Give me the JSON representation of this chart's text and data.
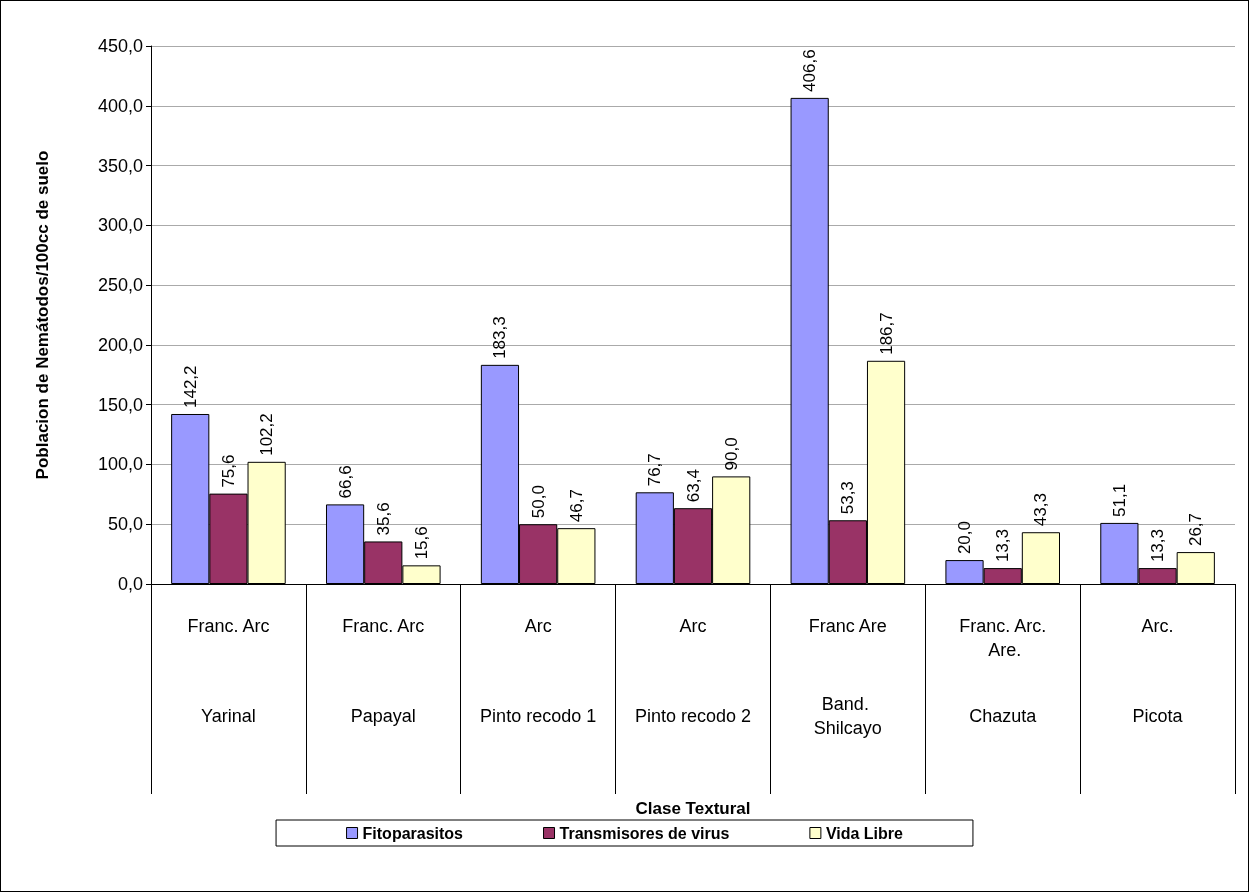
{
  "chart_data": {
    "type": "bar",
    "xlabel": "Clase Textural",
    "ylabel": "Poblacion de Nemátodos/100cc de suelo",
    "categories": [
      "Yarinal",
      "Papayal",
      "Pinto recodo 1",
      "Pinto recodo 2",
      "Band. Shilcayo",
      "Chazuta",
      "Picota"
    ],
    "annotations": [
      "Franc. Arc",
      "Franc. Arc",
      "Arc",
      "Arc",
      "Franc Are",
      "Franc. Arc. Are.",
      "Arc."
    ],
    "series": [
      {
        "name": "Fitoparasitos",
        "color": "#9999ff",
        "values": [
          142.2,
          66.6,
          183.3,
          76.7,
          406.6,
          20.0,
          51.1
        ],
        "value_labels": [
          "142,2",
          "66,6",
          "183,3",
          "76,7",
          "406,6",
          "20,0",
          "51,1"
        ]
      },
      {
        "name": "Transmisores de virus",
        "color": "#993366",
        "values": [
          75.6,
          35.6,
          50.0,
          63.4,
          53.3,
          13.3,
          13.3
        ],
        "value_labels": [
          "75,6",
          "35,6",
          "50,0",
          "63,4",
          "53,3",
          "13,3",
          "13,3"
        ]
      },
      {
        "name": "Vida Libre",
        "color": "#ffffcc",
        "values": [
          102.2,
          15.6,
          46.7,
          90.0,
          186.7,
          43.3,
          26.7
        ],
        "value_labels": [
          "102,2",
          "15,6",
          "46,7",
          "90,0",
          "186,7",
          "43,3",
          "26,7"
        ]
      }
    ],
    "ylim": [
      0,
      450
    ],
    "yticks": [
      {
        "value": 0,
        "label": "0,0"
      },
      {
        "value": 50,
        "label": "50,0"
      },
      {
        "value": 100,
        "label": "100,0"
      },
      {
        "value": 150,
        "label": "150,0"
      },
      {
        "value": 200,
        "label": "200,0"
      },
      {
        "value": 250,
        "label": "250,0"
      },
      {
        "value": 300,
        "label": "300,0"
      },
      {
        "value": 350,
        "label": "350,0"
      },
      {
        "value": 400,
        "label": "400,0"
      },
      {
        "value": 450,
        "label": "450,0"
      }
    ],
    "grid": "y",
    "legend": "bottom"
  }
}
